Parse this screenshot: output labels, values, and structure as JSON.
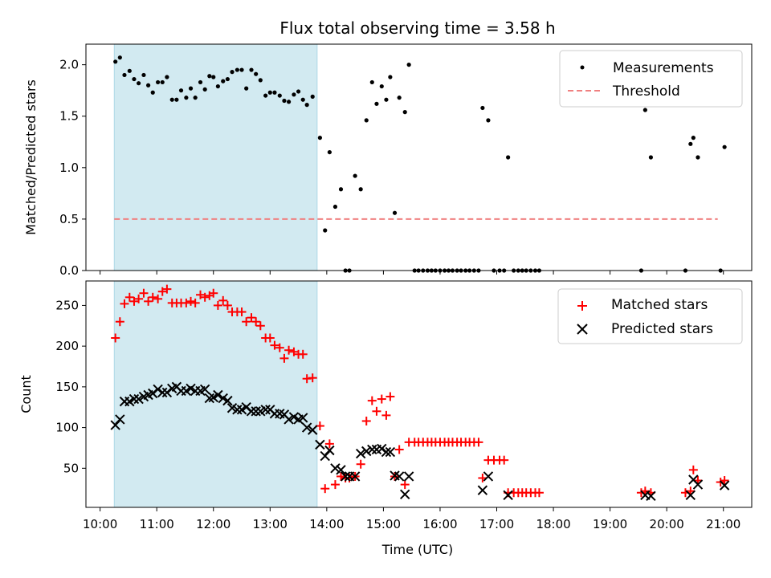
{
  "chart_data": {
    "type": "scatter",
    "title": "Flux total observing time = 3.58 h",
    "xlabel": "Time (UTC)",
    "x_tick_labels": [
      "10:00",
      "11:00",
      "12:00",
      "13:00",
      "14:00",
      "15:00",
      "16:00",
      "17:00",
      "18:00",
      "19:00",
      "20:00",
      "21:00"
    ],
    "x_tick_hours": [
      10,
      11,
      12,
      13,
      14,
      15,
      16,
      17,
      18,
      19,
      20,
      21
    ],
    "xlim_hours": [
      9.75,
      21.5
    ],
    "shaded_interval_hours": [
      10.25,
      13.83
    ],
    "shade_color": "#add8e6",
    "top": {
      "ylabel": "Matched/Predicted stars",
      "ylim": [
        0,
        2.2
      ],
      "y_ticks": [
        0.0,
        0.5,
        1.0,
        1.5,
        2.0
      ],
      "y_tick_labels": [
        "0.0",
        "0.5",
        "1.0",
        "1.5",
        "2.0"
      ],
      "threshold": {
        "name": "Threshold",
        "value": 0.5,
        "x_range_hours": [
          10.25,
          20.9
        ],
        "color": "#f08080"
      },
      "measurements": {
        "name": "Measurements",
        "color": "#000000",
        "points": [
          [
            10.27,
            2.03
          ],
          [
            10.35,
            2.07
          ],
          [
            10.43,
            1.9
          ],
          [
            10.52,
            1.94
          ],
          [
            10.6,
            1.86
          ],
          [
            10.68,
            1.82
          ],
          [
            10.77,
            1.9
          ],
          [
            10.85,
            1.8
          ],
          [
            10.93,
            1.73
          ],
          [
            11.02,
            1.83
          ],
          [
            11.1,
            1.83
          ],
          [
            11.18,
            1.88
          ],
          [
            11.27,
            1.66
          ],
          [
            11.35,
            1.66
          ],
          [
            11.43,
            1.75
          ],
          [
            11.52,
            1.68
          ],
          [
            11.6,
            1.77
          ],
          [
            11.68,
            1.68
          ],
          [
            11.77,
            1.83
          ],
          [
            11.85,
            1.76
          ],
          [
            11.93,
            1.89
          ],
          [
            12.0,
            1.88
          ],
          [
            12.08,
            1.79
          ],
          [
            12.17,
            1.84
          ],
          [
            12.25,
            1.86
          ],
          [
            12.33,
            1.93
          ],
          [
            12.42,
            1.95
          ],
          [
            12.5,
            1.95
          ],
          [
            12.58,
            1.77
          ],
          [
            12.67,
            1.95
          ],
          [
            12.75,
            1.91
          ],
          [
            12.83,
            1.85
          ],
          [
            12.92,
            1.7
          ],
          [
            13.0,
            1.73
          ],
          [
            13.08,
            1.73
          ],
          [
            13.17,
            1.7
          ],
          [
            13.25,
            1.65
          ],
          [
            13.33,
            1.64
          ],
          [
            13.42,
            1.71
          ],
          [
            13.5,
            1.74
          ],
          [
            13.58,
            1.66
          ],
          [
            13.65,
            1.61
          ],
          [
            13.75,
            1.69
          ],
          [
            13.88,
            1.29
          ],
          [
            13.97,
            0.39
          ],
          [
            14.05,
            1.15
          ],
          [
            14.15,
            0.62
          ],
          [
            14.25,
            0.79
          ],
          [
            14.33,
            0.0
          ],
          [
            14.4,
            0.0
          ],
          [
            14.5,
            0.92
          ],
          [
            14.6,
            0.79
          ],
          [
            14.7,
            1.46
          ],
          [
            14.8,
            1.83
          ],
          [
            14.88,
            1.62
          ],
          [
            14.97,
            1.79
          ],
          [
            15.05,
            1.66
          ],
          [
            15.12,
            1.88
          ],
          [
            15.2,
            0.56
          ],
          [
            15.28,
            1.68
          ],
          [
            15.38,
            1.54
          ],
          [
            15.45,
            2.0
          ],
          [
            15.55,
            0.0
          ],
          [
            15.62,
            0.0
          ],
          [
            15.7,
            0.0
          ],
          [
            15.78,
            0.0
          ],
          [
            15.85,
            0.0
          ],
          [
            15.92,
            0.0
          ],
          [
            16.0,
            0.0
          ],
          [
            16.08,
            0.0
          ],
          [
            16.15,
            0.0
          ],
          [
            16.22,
            0.0
          ],
          [
            16.3,
            0.0
          ],
          [
            16.37,
            0.0
          ],
          [
            16.45,
            0.0
          ],
          [
            16.52,
            0.0
          ],
          [
            16.6,
            0.0
          ],
          [
            16.68,
            0.0
          ],
          [
            16.75,
            1.58
          ],
          [
            16.85,
            1.46
          ],
          [
            16.95,
            0.0
          ],
          [
            17.05,
            0.0
          ],
          [
            17.13,
            0.0
          ],
          [
            17.2,
            1.1
          ],
          [
            17.3,
            0.0
          ],
          [
            17.38,
            0.0
          ],
          [
            17.45,
            0.0
          ],
          [
            17.52,
            0.0
          ],
          [
            17.6,
            0.0
          ],
          [
            17.68,
            0.0
          ],
          [
            17.75,
            0.0
          ],
          [
            19.55,
            0.0
          ],
          [
            19.62,
            1.56
          ],
          [
            19.72,
            1.1
          ],
          [
            20.33,
            0.0
          ],
          [
            20.42,
            1.23
          ],
          [
            20.47,
            1.29
          ],
          [
            20.55,
            1.1
          ],
          [
            20.95,
            0.0
          ],
          [
            21.02,
            1.2
          ]
        ]
      }
    },
    "bottom": {
      "ylabel": "Count",
      "ylim": [
        2,
        280
      ],
      "y_ticks": [
        50,
        100,
        150,
        200,
        250
      ],
      "y_tick_labels": [
        "50",
        "100",
        "150",
        "200",
        "250"
      ],
      "matched": {
        "name": "Matched stars",
        "color": "#ff0000",
        "points": [
          [
            10.27,
            210
          ],
          [
            10.35,
            230
          ],
          [
            10.43,
            252
          ],
          [
            10.52,
            260
          ],
          [
            10.6,
            255
          ],
          [
            10.68,
            258
          ],
          [
            10.77,
            265
          ],
          [
            10.85,
            255
          ],
          [
            10.93,
            260
          ],
          [
            11.02,
            258
          ],
          [
            11.1,
            267
          ],
          [
            11.18,
            270
          ],
          [
            11.27,
            253
          ],
          [
            11.35,
            253
          ],
          [
            11.43,
            253
          ],
          [
            11.52,
            253
          ],
          [
            11.6,
            255
          ],
          [
            11.68,
            253
          ],
          [
            11.77,
            263
          ],
          [
            11.85,
            260
          ],
          [
            11.93,
            262
          ],
          [
            12.0,
            265
          ],
          [
            12.08,
            250
          ],
          [
            12.17,
            256
          ],
          [
            12.25,
            250
          ],
          [
            12.33,
            242
          ],
          [
            12.42,
            242
          ],
          [
            12.5,
            242
          ],
          [
            12.58,
            230
          ],
          [
            12.67,
            235
          ],
          [
            12.75,
            230
          ],
          [
            12.83,
            225
          ],
          [
            12.92,
            210
          ],
          [
            13.0,
            210
          ],
          [
            13.08,
            201
          ],
          [
            13.17,
            198
          ],
          [
            13.25,
            185
          ],
          [
            13.33,
            195
          ],
          [
            13.42,
            193
          ],
          [
            13.5,
            190
          ],
          [
            13.58,
            190
          ],
          [
            13.65,
            160
          ],
          [
            13.75,
            161
          ],
          [
            13.88,
            102
          ],
          [
            13.97,
            25
          ],
          [
            14.05,
            80
          ],
          [
            14.15,
            30
          ],
          [
            14.25,
            40
          ],
          [
            14.33,
            38
          ],
          [
            14.4,
            38
          ],
          [
            14.5,
            40
          ],
          [
            14.6,
            55
          ],
          [
            14.7,
            108
          ],
          [
            14.8,
            133
          ],
          [
            14.88,
            120
          ],
          [
            14.97,
            135
          ],
          [
            15.05,
            115
          ],
          [
            15.12,
            138
          ],
          [
            15.2,
            40
          ],
          [
            15.28,
            73
          ],
          [
            15.38,
            30
          ],
          [
            15.45,
            82
          ],
          [
            15.55,
            82
          ],
          [
            15.62,
            82
          ],
          [
            15.7,
            82
          ],
          [
            15.78,
            82
          ],
          [
            15.85,
            82
          ],
          [
            15.92,
            82
          ],
          [
            16.0,
            82
          ],
          [
            16.08,
            82
          ],
          [
            16.15,
            82
          ],
          [
            16.22,
            82
          ],
          [
            16.3,
            82
          ],
          [
            16.37,
            82
          ],
          [
            16.45,
            82
          ],
          [
            16.52,
            82
          ],
          [
            16.6,
            82
          ],
          [
            16.68,
            82
          ],
          [
            16.75,
            38
          ],
          [
            16.85,
            60
          ],
          [
            16.95,
            60
          ],
          [
            17.05,
            60
          ],
          [
            17.13,
            60
          ],
          [
            17.2,
            20
          ],
          [
            17.3,
            20
          ],
          [
            17.38,
            20
          ],
          [
            17.45,
            20
          ],
          [
            17.52,
            20
          ],
          [
            17.6,
            20
          ],
          [
            17.68,
            20
          ],
          [
            17.75,
            20
          ],
          [
            19.55,
            20
          ],
          [
            19.62,
            22
          ],
          [
            19.72,
            20
          ],
          [
            20.33,
            20
          ],
          [
            20.42,
            22
          ],
          [
            20.47,
            48
          ],
          [
            20.55,
            35
          ],
          [
            20.95,
            33
          ],
          [
            21.02,
            35
          ]
        ]
      },
      "predicted": {
        "name": "Predicted stars",
        "color": "#000000",
        "points": [
          [
            10.27,
            103
          ],
          [
            10.35,
            110
          ],
          [
            10.43,
            132
          ],
          [
            10.52,
            132
          ],
          [
            10.6,
            135
          ],
          [
            10.68,
            135
          ],
          [
            10.77,
            138
          ],
          [
            10.85,
            140
          ],
          [
            10.93,
            142
          ],
          [
            11.02,
            147
          ],
          [
            11.1,
            143
          ],
          [
            11.18,
            143
          ],
          [
            11.27,
            148
          ],
          [
            11.35,
            150
          ],
          [
            11.43,
            145
          ],
          [
            11.52,
            145
          ],
          [
            11.6,
            148
          ],
          [
            11.68,
            145
          ],
          [
            11.77,
            145
          ],
          [
            11.85,
            147
          ],
          [
            11.93,
            136
          ],
          [
            12.0,
            137
          ],
          [
            12.08,
            140
          ],
          [
            12.17,
            136
          ],
          [
            12.25,
            133
          ],
          [
            12.33,
            124
          ],
          [
            12.42,
            122
          ],
          [
            12.5,
            122
          ],
          [
            12.58,
            125
          ],
          [
            12.67,
            120
          ],
          [
            12.75,
            120
          ],
          [
            12.83,
            120
          ],
          [
            12.92,
            122
          ],
          [
            13.0,
            122
          ],
          [
            13.08,
            117
          ],
          [
            13.17,
            117
          ],
          [
            13.25,
            116
          ],
          [
            13.33,
            110
          ],
          [
            13.42,
            113
          ],
          [
            13.5,
            110
          ],
          [
            13.58,
            112
          ],
          [
            13.65,
            100
          ],
          [
            13.75,
            97
          ],
          [
            13.88,
            79
          ],
          [
            13.97,
            65
          ],
          [
            14.05,
            72
          ],
          [
            14.15,
            50
          ],
          [
            14.25,
            48
          ],
          [
            14.33,
            40
          ],
          [
            14.4,
            40
          ],
          [
            14.5,
            40
          ],
          [
            14.6,
            68
          ],
          [
            14.7,
            71
          ],
          [
            14.8,
            73
          ],
          [
            14.88,
            73
          ],
          [
            14.97,
            74
          ],
          [
            15.05,
            70
          ],
          [
            15.12,
            70
          ],
          [
            15.2,
            41
          ],
          [
            15.28,
            40
          ],
          [
            15.38,
            18
          ],
          [
            15.45,
            40
          ],
          [
            16.75,
            23
          ],
          [
            16.85,
            40
          ],
          [
            17.2,
            17
          ],
          [
            19.62,
            17
          ],
          [
            19.72,
            16
          ],
          [
            20.42,
            17
          ],
          [
            20.47,
            36
          ],
          [
            20.55,
            30
          ],
          [
            21.02,
            29
          ]
        ]
      }
    },
    "legend_top_placement": "top-right",
    "legend_bottom_placement": "top-right"
  }
}
